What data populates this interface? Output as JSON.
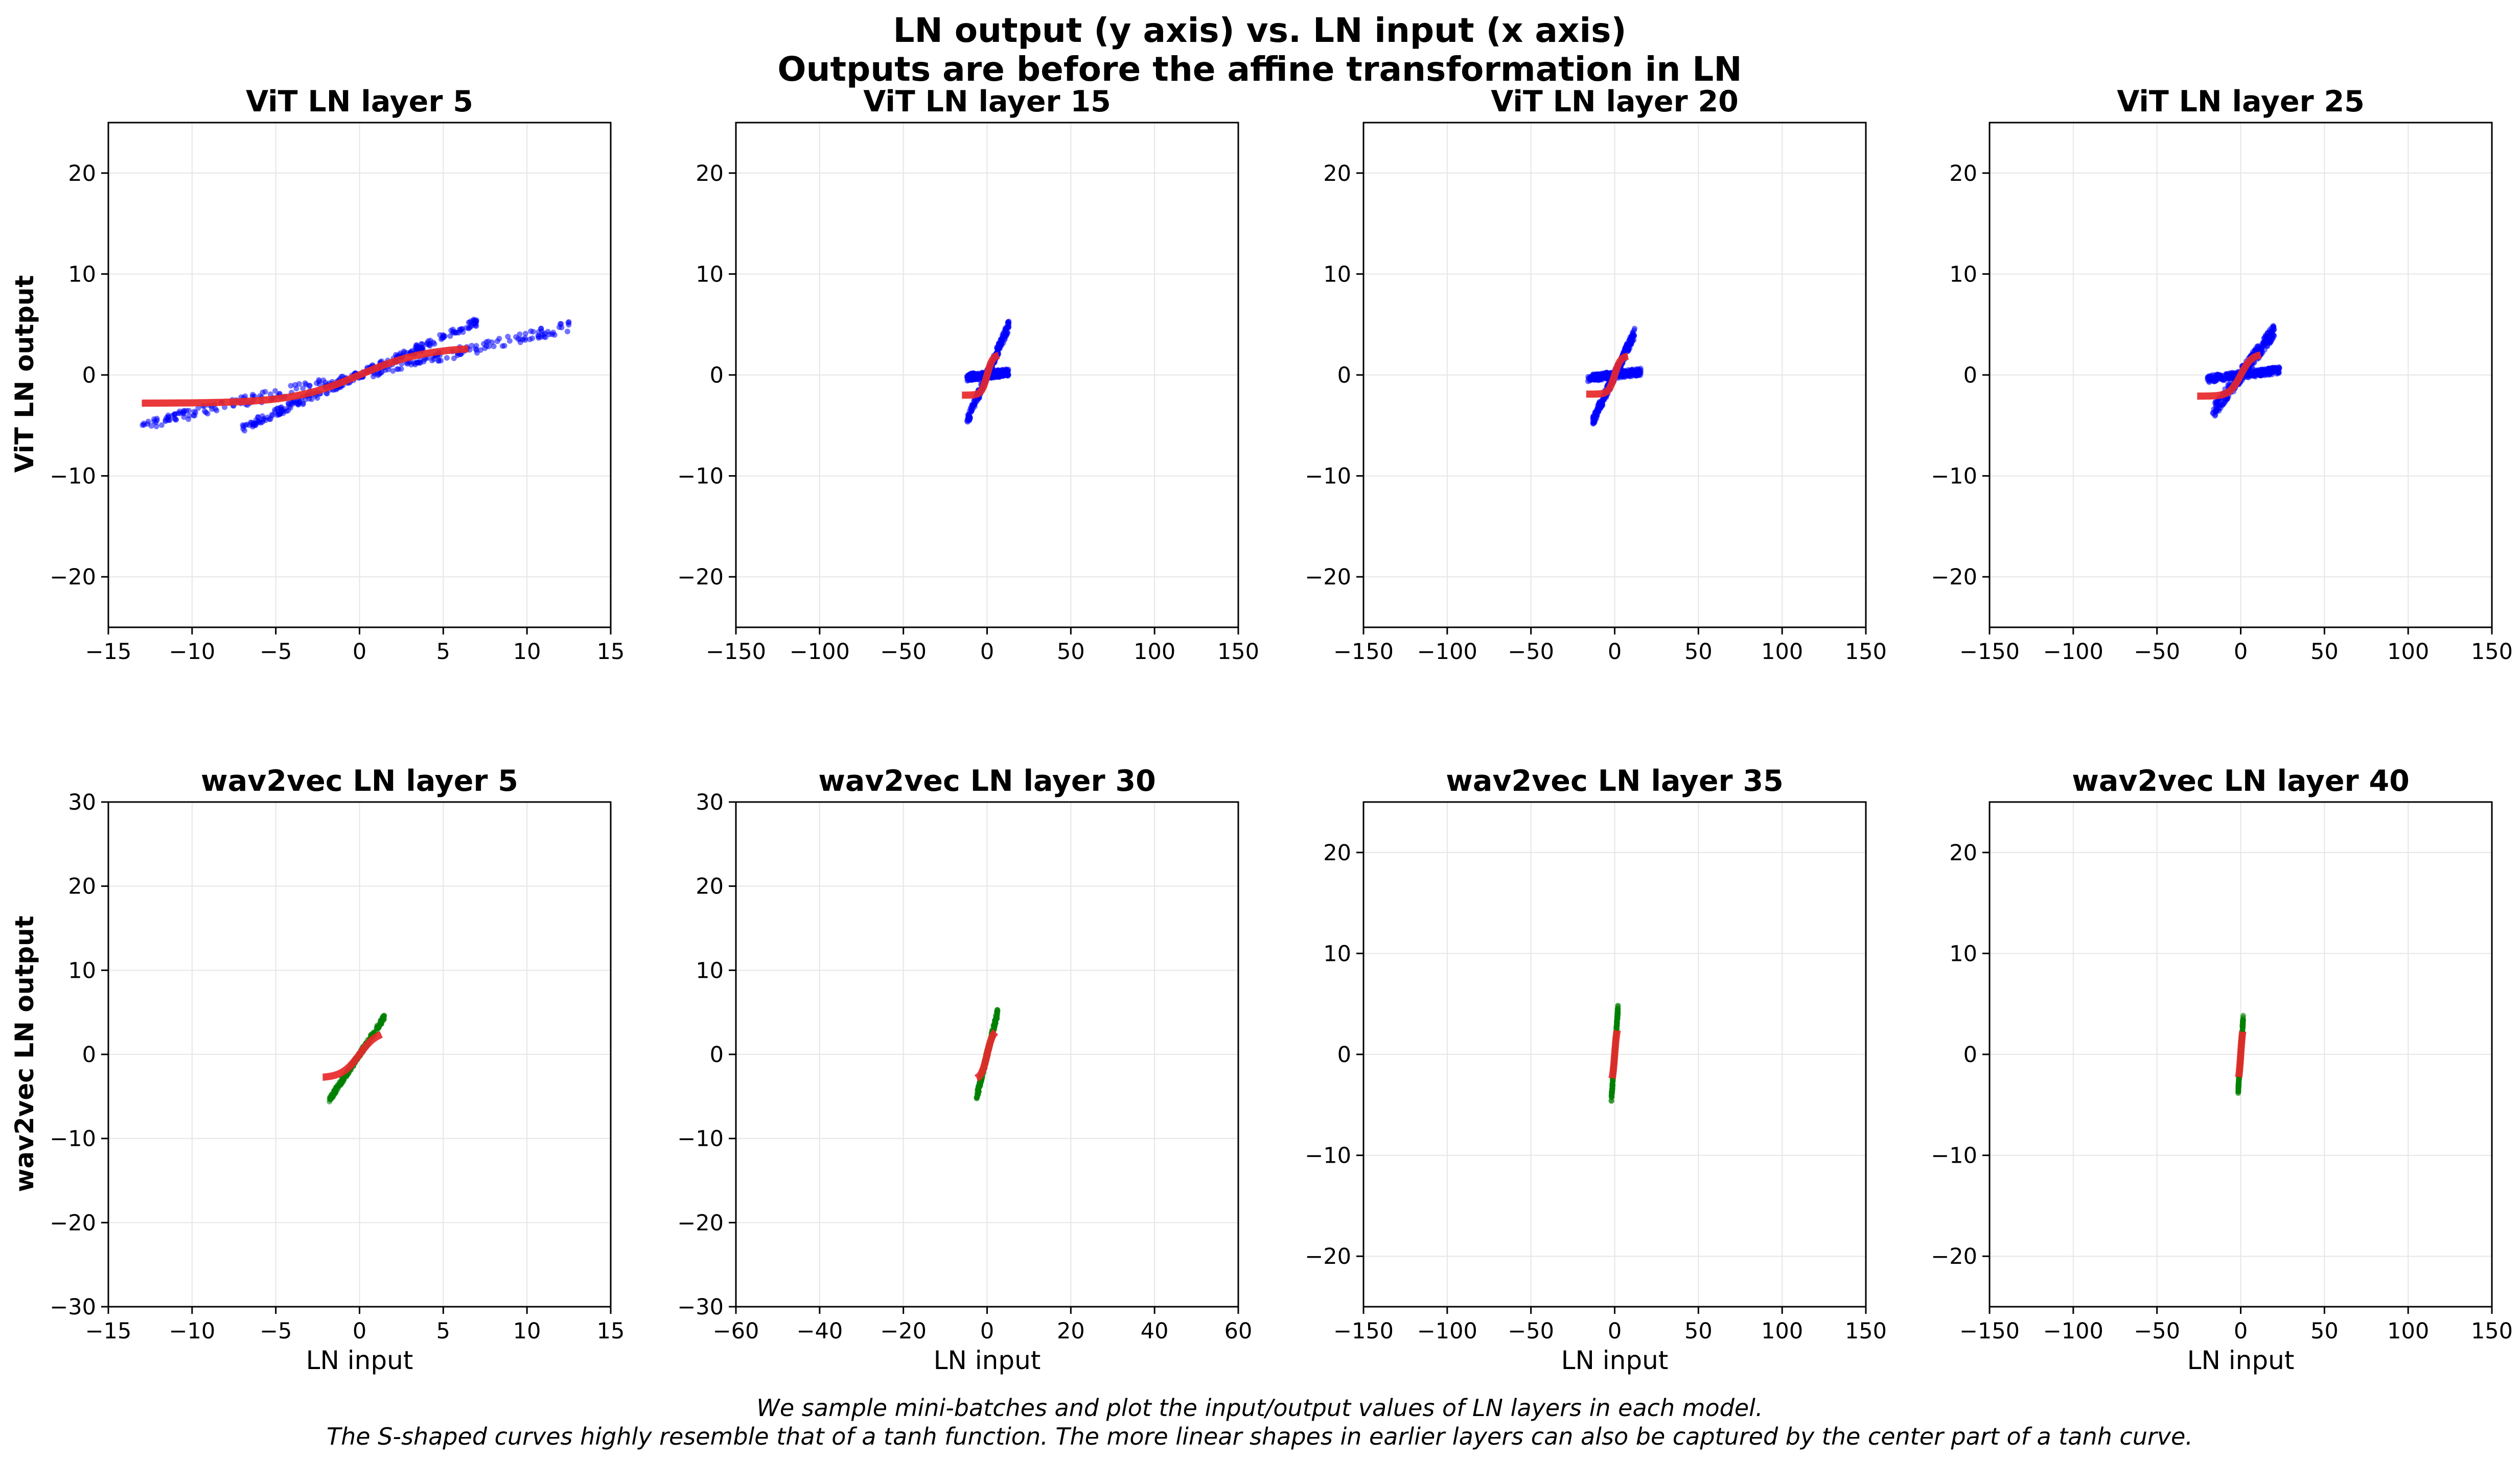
{
  "figure": {
    "title_line1": "LN output (y axis) vs. LN input (x axis)",
    "title_line2": "Outputs are before the affine transformation in LN",
    "caption_line1": "We sample mini-batches and plot the input/output values of LN layers in each model.",
    "caption_line2": "The S-shaped curves highly resemble that of a tanh function. The more linear shapes in earlier layers can also be captured by the center part of a tanh curve.",
    "row_labels": [
      "ViT LN output",
      "wav2vec LN output"
    ],
    "x_label": "LN input",
    "colors": {
      "tanh_fit": "#e8282a",
      "vit_points": "#0000ff",
      "wav2vec_points": "#008000",
      "grid": "#e6e6e6"
    }
  },
  "chart_data": [
    {
      "type": "scatter",
      "title": "ViT LN layer 5",
      "xlabel": "",
      "ylabel": "ViT LN output",
      "xlim": [
        -15,
        15
      ],
      "ylim": [
        -25,
        25
      ],
      "xticks": [
        -15,
        -10,
        -5,
        0,
        5,
        10,
        15
      ],
      "yticks": [
        -20,
        -10,
        0,
        10,
        20
      ],
      "xtick_labels": [
        "−15",
        "−10",
        "−5",
        "0",
        "5",
        "10",
        "15"
      ],
      "ytick_labels": [
        "−20",
        "−10",
        "0",
        "10",
        "20"
      ],
      "grid": true,
      "point_color": "#0000ff",
      "point_bands": [
        {
          "x_range": [
            -13,
            12.5
          ],
          "slope": 0.38,
          "spread": 0.5
        },
        {
          "x_range": [
            -7,
            7
          ],
          "slope": 0.75,
          "spread": 0.4
        }
      ],
      "fit": {
        "x_range": [
          -13,
          6.5
        ],
        "a": 2.8,
        "b": 0.25
      }
    },
    {
      "type": "scatter",
      "title": "ViT LN layer 15",
      "xlabel": "",
      "ylabel": "",
      "xlim": [
        -150,
        150
      ],
      "ylim": [
        -25,
        25
      ],
      "xticks": [
        -150,
        -100,
        -50,
        0,
        50,
        100,
        150
      ],
      "yticks": [
        -20,
        -10,
        0,
        10,
        20
      ],
      "xtick_labels": [
        "−150",
        "−100",
        "−50",
        "0",
        "50",
        "100",
        "150"
      ],
      "ytick_labels": [
        "−20",
        "−10",
        "0",
        "10",
        "20"
      ],
      "grid": true,
      "point_color": "#0000ff",
      "point_bands": [
        {
          "x_range": [
            -12,
            13
          ],
          "slope": 0.38,
          "spread": 0.5
        },
        {
          "x_range": [
            -12,
            13
          ],
          "slope": 0.02,
          "spread": 0.35
        }
      ],
      "fit": {
        "x_range": [
          -15,
          7
        ],
        "a": 2.0,
        "b": 0.3
      }
    },
    {
      "type": "scatter",
      "title": "ViT LN layer 20",
      "xlabel": "",
      "ylabel": "",
      "xlim": [
        -150,
        150
      ],
      "ylim": [
        -25,
        25
      ],
      "xticks": [
        -150,
        -100,
        -50,
        0,
        50,
        100,
        150
      ],
      "yticks": [
        -20,
        -10,
        0,
        10,
        20
      ],
      "xtick_labels": [
        "−150",
        "−100",
        "−50",
        "0",
        "50",
        "100",
        "150"
      ],
      "ytick_labels": [
        "−20",
        "−10",
        "0",
        "10",
        "20"
      ],
      "grid": true,
      "point_color": "#0000ff",
      "point_bands": [
        {
          "x_range": [
            -13,
            12
          ],
          "slope": 0.35,
          "spread": 0.5
        },
        {
          "x_range": [
            -16,
            16
          ],
          "slope": 0.02,
          "spread": 0.35
        }
      ],
      "fit": {
        "x_range": [
          -17,
          8
        ],
        "a": 1.9,
        "b": 0.28
      }
    },
    {
      "type": "scatter",
      "title": "ViT LN layer 25",
      "xlabel": "",
      "ylabel": "",
      "xlim": [
        -150,
        150
      ],
      "ylim": [
        -25,
        25
      ],
      "xticks": [
        -150,
        -100,
        -50,
        0,
        50,
        100,
        150
      ],
      "yticks": [
        -20,
        -10,
        0,
        10,
        20
      ],
      "xtick_labels": [
        "−150",
        "−100",
        "−50",
        "0",
        "50",
        "100",
        "150"
      ],
      "ytick_labels": [
        "−20",
        "−10",
        "0",
        "10",
        "20"
      ],
      "grid": true,
      "point_color": "#0000ff",
      "point_bands": [
        {
          "x_range": [
            -17,
            20
          ],
          "slope": 0.22,
          "spread": 0.7
        },
        {
          "x_range": [
            -20,
            24
          ],
          "slope": 0.02,
          "spread": 0.35
        }
      ],
      "fit": {
        "x_range": [
          -26,
          12
        ],
        "a": 2.1,
        "b": 0.15
      }
    },
    {
      "type": "scatter",
      "title": "wav2vec LN layer 5",
      "xlabel": "LN input",
      "ylabel": "wav2vec LN output",
      "xlim": [
        -15,
        15
      ],
      "ylim": [
        -30,
        30
      ],
      "xticks": [
        -15,
        -10,
        -5,
        0,
        5,
        10,
        15
      ],
      "yticks": [
        -30,
        -20,
        -10,
        0,
        10,
        20,
        30
      ],
      "xtick_labels": [
        "−15",
        "−10",
        "−5",
        "0",
        "5",
        "10",
        "15"
      ],
      "ytick_labels": [
        "−30",
        "−20",
        "−10",
        "0",
        "10",
        "20",
        "30"
      ],
      "grid": true,
      "point_color": "#008000",
      "point_bands": [
        {
          "x_range": [
            -1.8,
            1.5
          ],
          "slope": 3.0,
          "spread": 0.3
        }
      ],
      "fit": {
        "x_range": [
          -2.2,
          1.3
        ],
        "a": 2.8,
        "b": 0.95
      }
    },
    {
      "type": "scatter",
      "title": "wav2vec LN layer 30",
      "xlabel": "LN input",
      "ylabel": "",
      "xlim": [
        -60,
        60
      ],
      "ylim": [
        -30,
        30
      ],
      "xticks": [
        -60,
        -40,
        -20,
        0,
        20,
        40,
        60
      ],
      "yticks": [
        -30,
        -20,
        -10,
        0,
        10,
        20,
        30
      ],
      "xtick_labels": [
        "−60",
        "−40",
        "−20",
        "0",
        "20",
        "40",
        "60"
      ],
      "ytick_labels": [
        "−30",
        "−20",
        "−10",
        "0",
        "10",
        "20",
        "30"
      ],
      "grid": true,
      "point_color": "#008000",
      "point_bands": [
        {
          "x_range": [
            -2.5,
            2.5
          ],
          "slope": 2.0,
          "spread": 0.5
        }
      ],
      "fit": {
        "x_range": [
          -2.5,
          2.0
        ],
        "a": 3.0,
        "b": 0.7
      }
    },
    {
      "type": "scatter",
      "title": "wav2vec LN layer 35",
      "xlabel": "LN input",
      "ylabel": "",
      "xlim": [
        -150,
        150
      ],
      "ylim": [
        -25,
        25
      ],
      "xticks": [
        -150,
        -100,
        -50,
        0,
        50,
        100,
        150
      ],
      "yticks": [
        -20,
        -10,
        0,
        10,
        20
      ],
      "xtick_labels": [
        "−150",
        "−100",
        "−50",
        "0",
        "50",
        "100",
        "150"
      ],
      "ytick_labels": [
        "−20",
        "−10",
        "0",
        "10",
        "20"
      ],
      "grid": true,
      "point_color": "#008000",
      "point_bands": [
        {
          "x_range": [
            -2,
            2
          ],
          "slope": 2.3,
          "spread": 0.4
        }
      ],
      "fit": {
        "x_range": [
          -1.5,
          1.5
        ],
        "a": 3.0,
        "b": 0.7
      }
    },
    {
      "type": "scatter",
      "title": "wav2vec LN layer 40",
      "xlabel": "LN input",
      "ylabel": "",
      "xlim": [
        -150,
        150
      ],
      "ylim": [
        -25,
        25
      ],
      "xticks": [
        -150,
        -100,
        -50,
        0,
        50,
        100,
        150
      ],
      "yticks": [
        -20,
        -10,
        0,
        10,
        20
      ],
      "xtick_labels": [
        "−150",
        "−100",
        "−50",
        "0",
        "50",
        "100",
        "150"
      ],
      "ytick_labels": [
        "−20",
        "−10",
        "0",
        "10",
        "20"
      ],
      "grid": true,
      "point_color": "#008000",
      "point_bands": [
        {
          "x_range": [
            -1.5,
            1.5
          ],
          "slope": 2.4,
          "spread": 0.4
        }
      ],
      "fit": {
        "x_range": [
          -1.2,
          1.2
        ],
        "a": 3.0,
        "b": 0.8
      }
    }
  ]
}
